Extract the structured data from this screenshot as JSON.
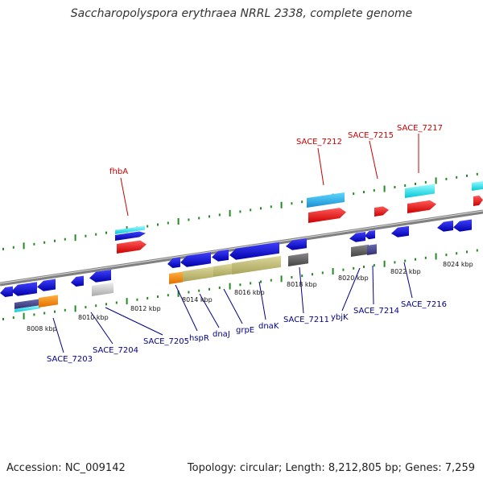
{
  "title": "Saccharopolyspora erythraea NRRL 2338, complete genome",
  "footer": {
    "accession": "Accession: NC_009142",
    "topology": "Topology: circular; Length: 8,212,805 bp; Genes: 7,259"
  },
  "ticks": [
    "8008 kbp",
    "8010 kbp",
    "8012 kbp",
    "8014 kbp",
    "8016 kbp",
    "8018 kbp",
    "8020 kbp",
    "8022 kbp",
    "8024 kbp"
  ],
  "top_labels": [
    "fhbA",
    "SACE_7212",
    "SACE_7215",
    "SACE_7217"
  ],
  "bottom_labels": [
    "SACE_7203",
    "SACE_7204",
    "SACE_7205",
    "hspR",
    "dnaJ",
    "grpE",
    "dnaK",
    "SACE_7211",
    "ybjK",
    "SACE_7214",
    "SACE_7216"
  ],
  "colors": {
    "strand": "#808080",
    "tick": "#228b22",
    "forward_gene": "#ff0000",
    "reverse_gene": "#0000ee",
    "cyan_feature": "#00e5ee",
    "orange_feature": "#ff8c00",
    "khaki_feature": "#bdb76b",
    "gray_feature": "#555555",
    "top_label": "#cc0000",
    "bottom_label": "#00008b"
  }
}
